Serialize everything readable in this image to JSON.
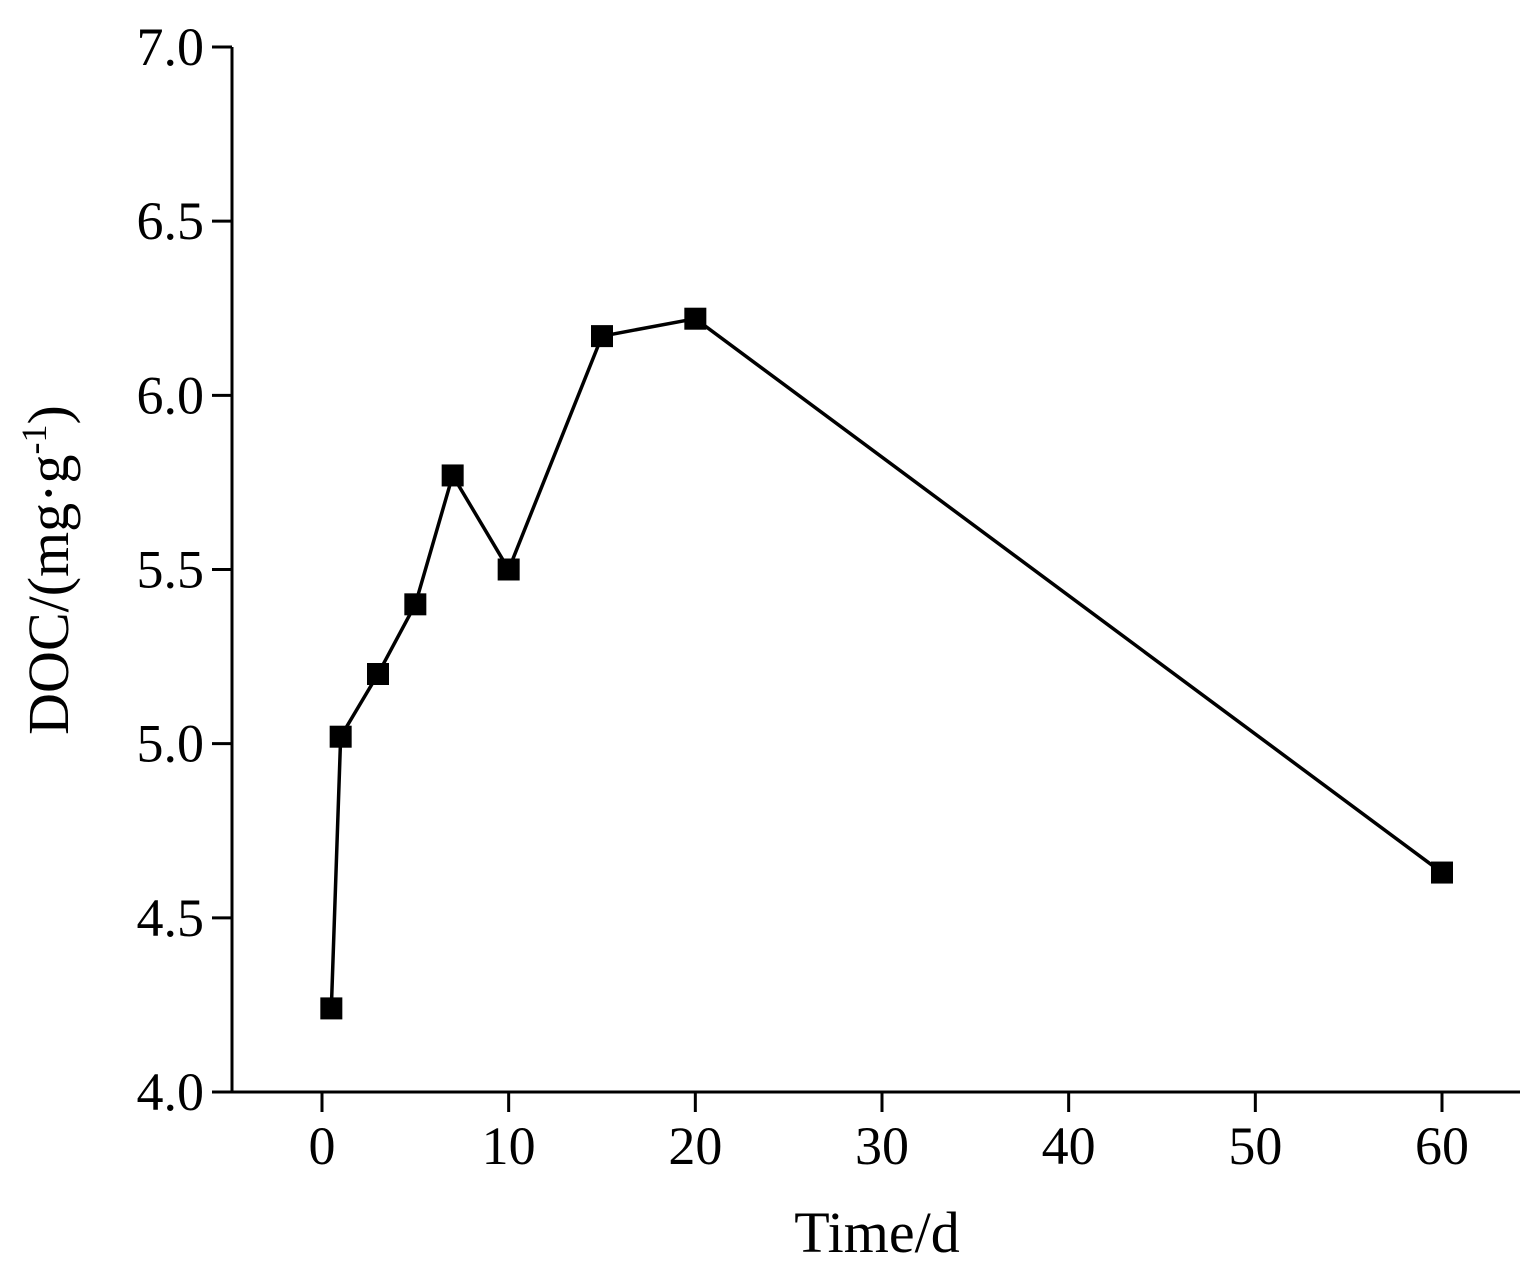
{
  "chart_data": {
    "type": "line",
    "title": "",
    "xlabel": "Time/d",
    "ylabel_main": "DOC/(mg·g",
    "ylabel_sup": "-1",
    "ylabel_close": ")",
    "xlim": [
      -5,
      64
    ],
    "ylim": [
      4.0,
      7.0
    ],
    "xticks": [
      0,
      10,
      20,
      30,
      40,
      50,
      60
    ],
    "xtick_labels": [
      "0",
      "10",
      "20",
      "30",
      "40",
      "50",
      "60"
    ],
    "yticks": [
      4.0,
      4.5,
      5.0,
      5.5,
      6.0,
      6.5,
      7.0
    ],
    "ytick_labels": [
      "4.0",
      "4.5",
      "5.0",
      "5.5",
      "6.0",
      "6.5",
      "7.0"
    ],
    "grid": false,
    "marker": "square",
    "color": "#000000",
    "series": [
      {
        "name": "DOC",
        "x": [
          0.5,
          1,
          3,
          5,
          7,
          10,
          15,
          20,
          60
        ],
        "y": [
          4.24,
          5.02,
          5.2,
          5.4,
          5.77,
          5.5,
          6.17,
          6.22,
          4.63
        ]
      }
    ]
  }
}
